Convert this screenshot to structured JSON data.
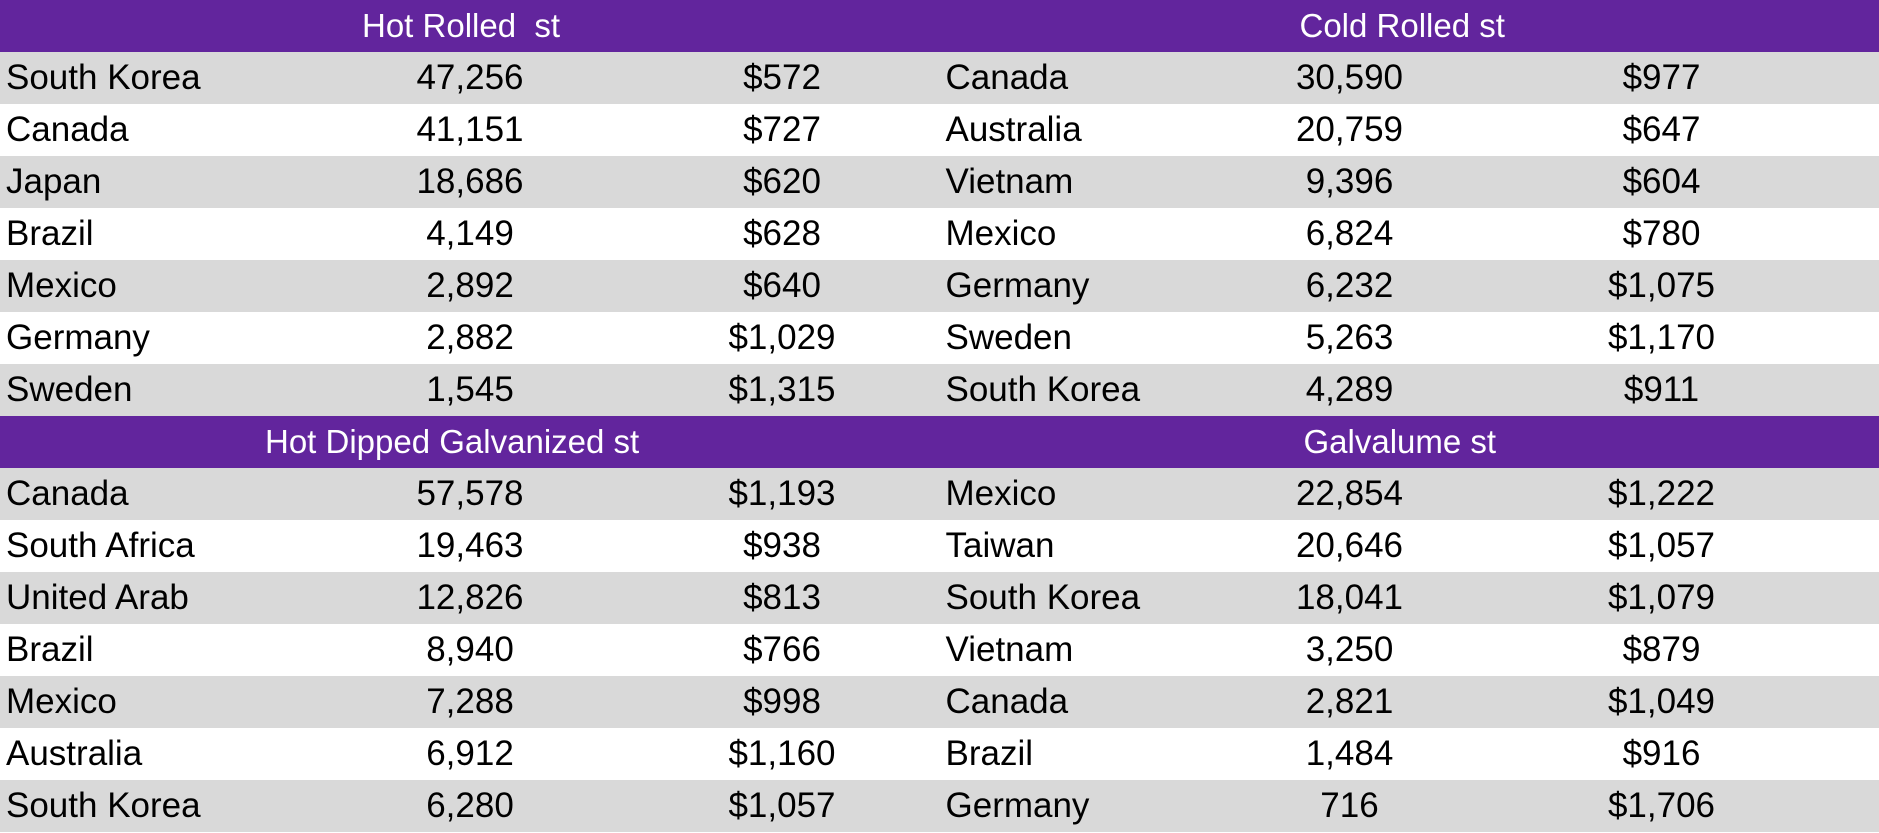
{
  "chart_data": {
    "type": "table",
    "colors": {
      "header_bg": "#62259D",
      "header_text": "#FFFFFF",
      "row_shade": "#D9D9D9",
      "row_plain": "#FFFFFF"
    },
    "tables": [
      {
        "title": "Hot Rolled  st",
        "rows": [
          {
            "country": "South Korea",
            "volume": "47,256",
            "price": "$572"
          },
          {
            "country": "Canada",
            "volume": "41,151",
            "price": "$727"
          },
          {
            "country": "Japan",
            "volume": "18,686",
            "price": "$620"
          },
          {
            "country": "Brazil",
            "volume": "4,149",
            "price": "$628"
          },
          {
            "country": "Mexico",
            "volume": "2,892",
            "price": "$640"
          },
          {
            "country": "Germany",
            "volume": "2,882",
            "price": "$1,029"
          },
          {
            "country": "Sweden",
            "volume": "1,545",
            "price": "$1,315"
          }
        ]
      },
      {
        "title": "Cold Rolled st",
        "rows": [
          {
            "country": "Canada",
            "volume": "30,590",
            "price": "$977"
          },
          {
            "country": "Australia",
            "volume": "20,759",
            "price": "$647"
          },
          {
            "country": "Vietnam",
            "volume": "9,396",
            "price": "$604"
          },
          {
            "country": "Mexico",
            "volume": "6,824",
            "price": "$780"
          },
          {
            "country": "Germany",
            "volume": "6,232",
            "price": "$1,075"
          },
          {
            "country": "Sweden",
            "volume": "5,263",
            "price": "$1,170"
          },
          {
            "country": "South Korea",
            "volume": "4,289",
            "price": "$911"
          }
        ]
      },
      {
        "title": "Hot Dipped Galvanized st",
        "rows": [
          {
            "country": "Canada",
            "volume": "57,578",
            "price": "$1,193"
          },
          {
            "country": "South Africa",
            "volume": "19,463",
            "price": "$938"
          },
          {
            "country": "United Arab",
            "volume": "12,826",
            "price": "$813"
          },
          {
            "country": "Brazil",
            "volume": "8,940",
            "price": "$766"
          },
          {
            "country": "Mexico",
            "volume": "7,288",
            "price": "$998"
          },
          {
            "country": "Australia",
            "volume": "6,912",
            "price": "$1,160"
          },
          {
            "country": "South Korea",
            "volume": "6,280",
            "price": "$1,057"
          }
        ]
      },
      {
        "title": "Galvalume st",
        "rows": [
          {
            "country": "Mexico",
            "volume": "22,854",
            "price": "$1,222"
          },
          {
            "country": "Taiwan",
            "volume": "20,646",
            "price": "$1,057"
          },
          {
            "country": "South Korea",
            "volume": "18,041",
            "price": "$1,079"
          },
          {
            "country": "Vietnam",
            "volume": "3,250",
            "price": "$879"
          },
          {
            "country": "Canada",
            "volume": "2,821",
            "price": "$1,049"
          },
          {
            "country": "Brazil",
            "volume": "1,484",
            "price": "$916"
          },
          {
            "country": "Germany",
            "volume": "716",
            "price": "$1,706"
          }
        ]
      }
    ]
  }
}
